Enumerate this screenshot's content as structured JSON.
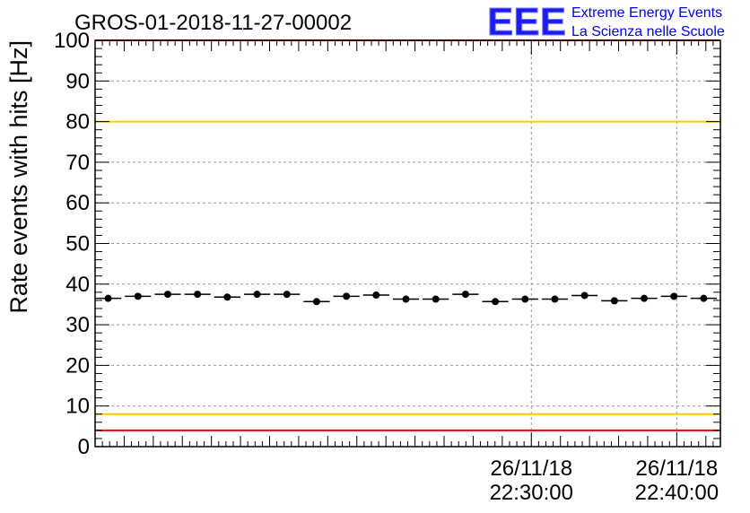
{
  "chart_data": {
    "type": "scatter",
    "title": "GROS-01-2018-11-27-00002",
    "xlabel": "",
    "ylabel": "Rate events with hits [Hz]",
    "ylim": [
      0,
      100
    ],
    "yticks": [
      0,
      10,
      20,
      30,
      40,
      50,
      60,
      70,
      80,
      90,
      100
    ],
    "xlim_minutes": [
      22.0,
      22.43
    ],
    "x_tick_labels": [
      {
        "date": "26/11/18",
        "time": "22:30:00"
      },
      {
        "date": "26/11/18",
        "time": "22:40:00"
      }
    ],
    "grid": true,
    "reference_lines": [
      {
        "y": 100,
        "color": "#ff0000"
      },
      {
        "y": 80,
        "color": "#ffcc00"
      },
      {
        "y": 8,
        "color": "#ffcc00"
      },
      {
        "y": 4,
        "color": "#ff0000"
      }
    ],
    "series": [
      {
        "values": [
          36.5,
          37.0,
          37.5,
          37.5,
          36.8,
          37.5,
          37.5,
          35.7,
          37.0,
          37.3,
          36.3,
          36.3,
          37.5,
          35.7,
          36.3,
          36.3,
          37.2,
          35.9,
          36.5,
          37.0,
          36.5
        ],
        "color": "#000000"
      }
    ]
  },
  "logo": {
    "mark": "EEE",
    "line1": "Extreme Energy Events",
    "line2": "La Scienza nelle Scuole",
    "color": "#0000ee"
  }
}
